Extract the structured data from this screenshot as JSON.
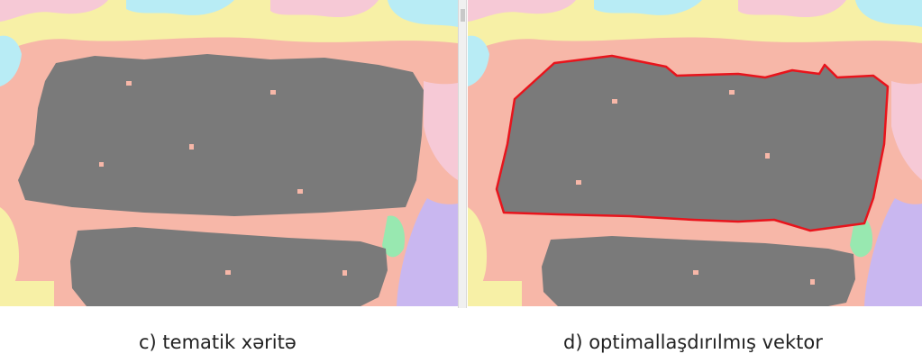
{
  "captions": {
    "left": "c) tematik xəritə",
    "right": "d) optimallaşdırılmış vektor"
  },
  "colors": {
    "background_salmon": "#f7b7a8",
    "building_gray": "#7a7a7a",
    "vector_outline": "#e8141c",
    "yellow": "#f7f0a6",
    "cyan": "#b8ecf5",
    "lavender": "#c9b7f0",
    "mint": "#98e8b0",
    "pink_light": "#f6c9d6"
  }
}
